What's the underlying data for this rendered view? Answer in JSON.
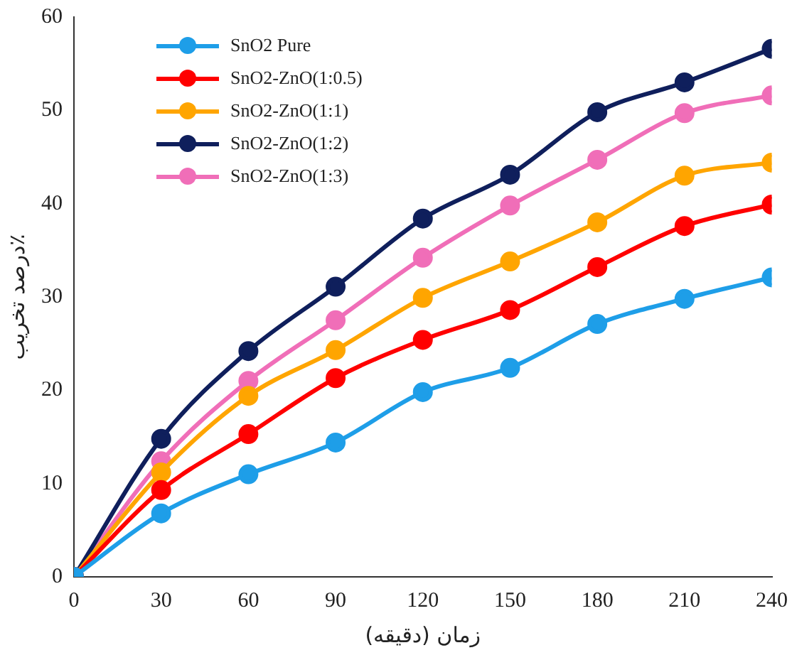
{
  "chart_data": {
    "type": "line",
    "xlabel": "زمان (دقیقه)",
    "ylabel": "درصد تخریب٪",
    "x": [
      0,
      30,
      60,
      90,
      120,
      150,
      180,
      210,
      240
    ],
    "xlim": [
      0,
      240
    ],
    "xticks": [
      0,
      30,
      60,
      90,
      120,
      150,
      180,
      210,
      240
    ],
    "ylim": [
      0,
      60
    ],
    "yticks": [
      0,
      10,
      20,
      30,
      40,
      50,
      60
    ],
    "grid": false,
    "legend": "top left",
    "marker": "circle",
    "line_style": "solid",
    "series": [
      {
        "name": "SnO2 Pure",
        "color": "#1e9ee8",
        "values": [
          0,
          6.8,
          11,
          14.4,
          19.8,
          22.4,
          27.1,
          29.8,
          32.1
        ]
      },
      {
        "name": "SnO2-ZnO(1:0.5)",
        "color": "#ff0000",
        "values": [
          0,
          9.3,
          15.3,
          21.3,
          25.4,
          28.6,
          33.2,
          37.6,
          39.9
        ]
      },
      {
        "name": "SnO2-ZnO(1:1)",
        "color": "#ffa500",
        "values": [
          0,
          11.2,
          19.4,
          24.3,
          29.9,
          33.8,
          38,
          43,
          44.4
        ]
      },
      {
        "name": "SnO2-ZnO(1:2)",
        "color": "#0f1f5c",
        "values": [
          0,
          14.8,
          24.2,
          31.1,
          38.4,
          43.1,
          49.8,
          53,
          56.6
        ]
      },
      {
        "name": "SnO2-ZnO(1:3)",
        "color": "#f06eb8",
        "values": [
          0,
          12.4,
          21,
          27.5,
          34.2,
          39.8,
          44.7,
          49.7,
          51.6
        ]
      }
    ]
  }
}
